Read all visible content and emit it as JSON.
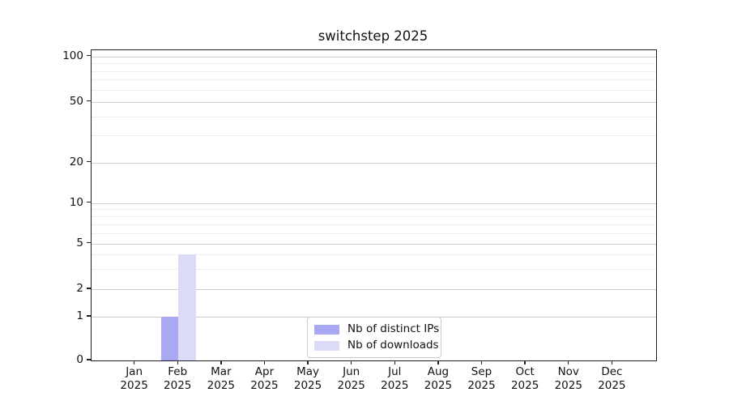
{
  "chart_data": {
    "type": "bar",
    "title": "switchstep 2025",
    "categories": [
      "Jan",
      "Feb",
      "Mar",
      "Apr",
      "May",
      "Jun",
      "Jul",
      "Aug",
      "Sep",
      "Oct",
      "Nov",
      "Dec"
    ],
    "x_tick_second_line": "2025",
    "series": [
      {
        "name": "Nb of distinct IPs",
        "color": "#a9a9f3",
        "values": [
          0,
          1,
          0,
          0,
          0,
          0,
          0,
          0,
          0,
          0,
          0,
          0
        ]
      },
      {
        "name": "Nb of downloads",
        "color": "#dbdbf8",
        "values": [
          0,
          4,
          0,
          0,
          0,
          0,
          0,
          0,
          0,
          0,
          0,
          0
        ]
      }
    ],
    "y_axis": {
      "scale": "log-like",
      "major_ticks": [
        0,
        1,
        2,
        5,
        10,
        20,
        50,
        100
      ],
      "minor_ticks": [
        3,
        4,
        6,
        7,
        8,
        9,
        30,
        40,
        60,
        70,
        80,
        90
      ],
      "ylim": [
        0,
        110
      ]
    },
    "legend": {
      "position": "lower center",
      "labels": [
        "Nb of distinct IPs",
        "Nb of downloads"
      ]
    },
    "grid": {
      "horizontal_major": true,
      "horizontal_minor": true,
      "vertical": false
    },
    "style_colors": {
      "major_grid": "#cdcdcd",
      "minor_grid": "#ededed",
      "spine": "#1f1f1f",
      "text": "#111111",
      "background": "#ffffff"
    }
  }
}
